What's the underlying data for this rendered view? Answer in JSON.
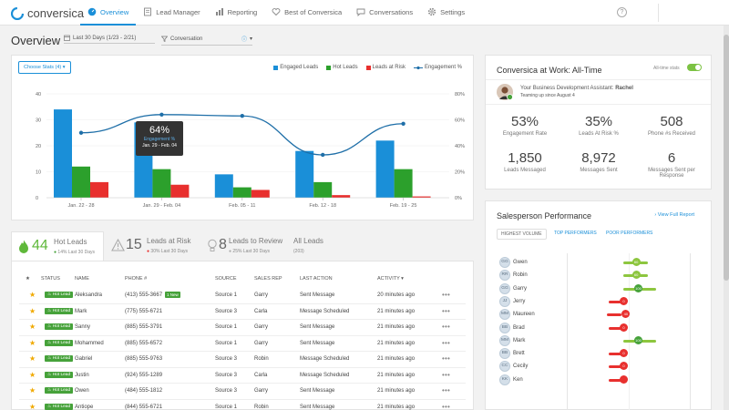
{
  "brand": {
    "name": "conversica",
    "accent": "#1a8fd8"
  },
  "nav": [
    {
      "label": "Overview",
      "icon": "gauge-icon",
      "active": true
    },
    {
      "label": "Lead Manager",
      "icon": "book-icon"
    },
    {
      "label": "Reporting",
      "icon": "bar-chart-icon"
    },
    {
      "label": "Best of Conversica",
      "icon": "heart-icon"
    },
    {
      "label": "Conversations",
      "icon": "chat-icon"
    },
    {
      "label": "Settings",
      "icon": "gear-icon"
    }
  ],
  "help_label": "?",
  "page": {
    "title": "Overview",
    "date_filter": "Last 30 Days (1/23 - 2/21)",
    "conv_filter": "Conversation"
  },
  "chart": {
    "choose_label": "Choose Stats (4)",
    "legend": [
      {
        "label": "Engaged Leads",
        "color": "#1a8fd8",
        "kind": "bar"
      },
      {
        "label": "Hot Leads",
        "color": "#2ca02c",
        "kind": "bar"
      },
      {
        "label": "Leads at Risk",
        "color": "#e8302e",
        "kind": "bar"
      },
      {
        "label": "Engagement %",
        "color": "#1f6fa8",
        "kind": "line"
      }
    ],
    "tooltip": {
      "value": "64%",
      "label": "Engagement %",
      "range": "Jan. 29 - Feb. 04"
    }
  },
  "chart_data": {
    "type": "bar",
    "categories": [
      "Jan. 22 - 28",
      "Jan. 29 - Feb. 04",
      "Feb. 05 - 11",
      "Feb. 12 - 18",
      "Feb. 19 - 25"
    ],
    "series": [
      {
        "name": "Engaged Leads",
        "values": [
          34,
          29,
          9,
          18,
          22
        ],
        "color": "#1a8fd8"
      },
      {
        "name": "Hot Leads",
        "values": [
          12,
          11,
          4,
          6,
          11
        ],
        "color": "#2ca02c"
      },
      {
        "name": "Leads at Risk",
        "values": [
          6,
          5,
          3,
          1,
          0.5
        ],
        "color": "#e8302e"
      },
      {
        "name": "Engagement %",
        "values": [
          50,
          64,
          63,
          33,
          57
        ],
        "color": "#1f6fa8",
        "axis": "right"
      }
    ],
    "ylim": [
      0,
      40
    ],
    "yticks": [
      0,
      10,
      20,
      30,
      40
    ],
    "y2lim": [
      0,
      80
    ],
    "y2ticks": [
      "0%",
      "20%",
      "40%",
      "60%",
      "80%"
    ],
    "legend_position": "top-right"
  },
  "work": {
    "title": "Conversica at Work: All-Time",
    "toggle_label": "All-time stats",
    "assistant_line": "Your Business Development Assistant:",
    "assistant_name": "Rachel",
    "assistant_since": "Teaming up since August 4",
    "stats": [
      {
        "value": "53%",
        "label": "Engagement Rate"
      },
      {
        "value": "35%",
        "label": "Leads At Risk %"
      },
      {
        "value": "508",
        "label": "Phone #s Received"
      },
      {
        "value": "1,850",
        "label": "Leads Messaged"
      },
      {
        "value": "8,972",
        "label": "Messages Sent"
      },
      {
        "value": "6",
        "label": "Messages Sent per Response"
      }
    ]
  },
  "tabs": [
    {
      "count": "44",
      "label": "Hot Leads",
      "sub": "14% Last 30 Days",
      "icon": "flame-icon",
      "trend": "up"
    },
    {
      "count": "15",
      "label": "Leads at Risk",
      "sub": "30% Last 30 Days",
      "icon": "warning-icon",
      "trend": "down"
    },
    {
      "count": "8",
      "label": "Leads to Review",
      "sub": "25% Last 30 Days",
      "icon": "lightbulb-icon",
      "trend": "neutral"
    },
    {
      "count": "",
      "label": "All Leads",
      "sub": "(203)",
      "icon": "",
      "trend": ""
    }
  ],
  "table": {
    "headers": {
      "status": "STATUS",
      "name": "NAME",
      "phone": "PHONE #",
      "source": "SOURCE",
      "rep": "SALES REP",
      "action": "LAST ACTION",
      "activity": "ACTIVITY"
    },
    "rows": [
      {
        "status": "Hot Lead",
        "name": "Aleksandra",
        "phone": "(413) 555-3667",
        "new": "1 New",
        "source": "Source 1",
        "rep": "Garry",
        "action": "Sent Message",
        "activity": "20 minutes ago"
      },
      {
        "status": "Hot Lead",
        "name": "Mark",
        "phone": "(775) 555-6721",
        "new": "",
        "source": "Source 3",
        "rep": "Carla",
        "action": "Message Scheduled",
        "activity": "21 minutes ago"
      },
      {
        "status": "Hot Lead",
        "name": "Sanny",
        "phone": "(885) 555-3791",
        "new": "",
        "source": "Source 1",
        "rep": "Garry",
        "action": "Sent Message",
        "activity": "21 minutes ago"
      },
      {
        "status": "Hot Lead",
        "name": "Mohammed",
        "phone": "(885) 555-6572",
        "new": "",
        "source": "Source 1",
        "rep": "Garry",
        "action": "Sent Message",
        "activity": "21 minutes ago"
      },
      {
        "status": "Hot Lead",
        "name": "Gabriel",
        "phone": "(885) 555-9763",
        "new": "",
        "source": "Source 3",
        "rep": "Robin",
        "action": "Message Scheduled",
        "activity": "21 minutes ago"
      },
      {
        "status": "Hot Lead",
        "name": "Justin",
        "phone": "(924) 555-1289",
        "new": "",
        "source": "Source 3",
        "rep": "Carla",
        "action": "Message Scheduled",
        "activity": "21 minutes ago"
      },
      {
        "status": "Hot Lead",
        "name": "Owen",
        "phone": "(484) 555-1812",
        "new": "",
        "source": "Source 3",
        "rep": "Garry",
        "action": "Sent Message",
        "activity": "21 minutes ago"
      },
      {
        "status": "Hot Lead",
        "name": "Antiope",
        "phone": "(844) 555-6721",
        "new": "",
        "source": "Source 1",
        "rep": "Robin",
        "action": "Sent Message",
        "activity": "21 minutes ago"
      }
    ]
  },
  "salesperson": {
    "title": "Salesperson Performance",
    "view_all": "View Full Report",
    "tabs": [
      "HIGHEST VOLUME",
      "TOP PERFORMERS",
      "POOR PERFORMERS"
    ],
    "rows": [
      {
        "initials": "GG",
        "name": "Gwen",
        "score": "60",
        "color": "#8dc63f"
      },
      {
        "initials": "RR",
        "name": "Robin",
        "score": "60",
        "color": "#8dc63f"
      },
      {
        "initials": "GG",
        "name": "Garry",
        "score": "100",
        "color": "#46a23a"
      },
      {
        "initials": "JJ",
        "name": "Jerry",
        "score": "0",
        "color": "#e8302e"
      },
      {
        "initials": "MM",
        "name": "Maureen",
        "score": "40",
        "color": "#e8302e"
      },
      {
        "initials": "BB",
        "name": "Brad",
        "score": "0",
        "color": "#e8302e"
      },
      {
        "initials": "MM",
        "name": "Mark",
        "score": "100",
        "color": "#46a23a"
      },
      {
        "initials": "BB",
        "name": "Brett",
        "score": "0",
        "color": "#e8302e"
      },
      {
        "initials": "CC",
        "name": "Cecily",
        "score": "0",
        "color": "#e8302e"
      },
      {
        "initials": "KK",
        "name": "Ken",
        "score": "",
        "color": "#e8302e"
      }
    ]
  }
}
